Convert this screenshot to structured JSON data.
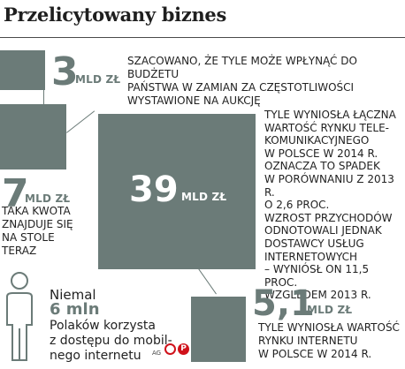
{
  "header": {
    "title": "Przelicytowany biznes"
  },
  "items": [
    {
      "value": "3",
      "unit": "MLD ZŁ",
      "caption": [
        "SZACOWANO, ŻE TYLE MOŻE WPŁYNĄĆ DO BUDŻETU",
        "PAŃSTWA W ZAMIAN ZA CZĘSTOTLIWOŚCI",
        "WYSTAWIONE NA AUKCJĘ"
      ]
    },
    {
      "value": "7",
      "unit": "MLD ZŁ",
      "caption": [
        "TAKA KWOTA",
        "ZNAJDUJE SIĘ",
        "NA STOLE",
        "TERAZ"
      ]
    },
    {
      "value": "39",
      "unit": "MLD ZŁ",
      "caption": [
        "TYLE WYNIOSŁA ŁĄCZNA",
        "WARTOŚĆ RYNKU TELE-",
        "KOMUNIKACYJNEGO",
        "W POLSCE W 2014 R.",
        "OZNACZA TO SPADEK",
        "W PORÓWNANIU Z 2013 R.",
        "O 2,6 PROC.",
        "WZROST PRZYCHODÓW",
        "ODNOTOWALI JEDNAK",
        "DOSTAWCY USŁUG",
        "INTERNETOWYCH",
        "– WYNIÓSŁ ON 11,5 PROC.",
        "WZGLĘDEM 2013 R."
      ]
    },
    {
      "value": "5,1",
      "unit": "MLD ZŁ",
      "caption": [
        "TYLE WYNIOSŁA WARTOŚĆ",
        "RYNKU INTERNETU",
        "W POLSCE W 2014 R."
      ]
    }
  ],
  "note": {
    "intro": "Niemal",
    "value": "6 mln",
    "lines": [
      "Polaków korzysta",
      "z dostępu do mobil-",
      "nego internetu"
    ]
  },
  "credit": {
    "author": "AG",
    "logo_letters": "P"
  },
  "colors": {
    "box": "#6b7b78",
    "text": "#222222",
    "logo": "#d0121b"
  }
}
